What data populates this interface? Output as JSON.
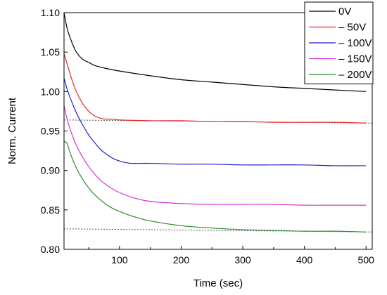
{
  "chart_data": {
    "type": "line",
    "title": "",
    "xlabel": "Time (sec)",
    "ylabel": "Norm. Current",
    "xlim": [
      10,
      510
    ],
    "ylim": [
      0.8,
      1.1
    ],
    "xticks": [
      100,
      200,
      300,
      400,
      500
    ],
    "yticks": [
      0.8,
      0.85,
      0.9,
      0.95,
      1.0,
      1.05,
      1.1
    ],
    "grid": false,
    "legend_position": "top-right",
    "series": [
      {
        "name": "0V",
        "color": "#000000",
        "x": [
          10,
          15,
          20,
          25,
          30,
          40,
          50,
          60,
          80,
          100,
          150,
          200,
          250,
          300,
          350,
          400,
          450,
          500
        ],
        "y": [
          1.1,
          1.08,
          1.068,
          1.058,
          1.05,
          1.041,
          1.037,
          1.033,
          1.029,
          1.026,
          1.02,
          1.015,
          1.012,
          1.009,
          1.006,
          1.004,
          1.002,
          1.0
        ]
      },
      {
        "name": "– 50V",
        "color": "#e8262b",
        "x": [
          10,
          15,
          20,
          25,
          30,
          40,
          50,
          60,
          70,
          80,
          90,
          100,
          150,
          200,
          250,
          300,
          350,
          400,
          450,
          500
        ],
        "y": [
          1.048,
          1.035,
          1.022,
          1.01,
          1.0,
          0.985,
          0.975,
          0.969,
          0.966,
          0.965,
          0.965,
          0.964,
          0.963,
          0.963,
          0.962,
          0.962,
          0.961,
          0.961,
          0.961,
          0.96
        ]
      },
      {
        "name": "– 100V",
        "color": "#1f1fcf",
        "x": [
          10,
          15,
          20,
          30,
          40,
          50,
          60,
          70,
          80,
          90,
          100,
          110,
          120,
          150,
          200,
          250,
          300,
          350,
          400,
          450,
          500
        ],
        "y": [
          1.017,
          1.003,
          0.992,
          0.973,
          0.958,
          0.945,
          0.935,
          0.926,
          0.92,
          0.915,
          0.912,
          0.91,
          0.909,
          0.909,
          0.908,
          0.908,
          0.907,
          0.907,
          0.907,
          0.906,
          0.906
        ]
      },
      {
        "name": "– 150V",
        "color": "#d633d6",
        "x": [
          10,
          15,
          20,
          30,
          40,
          50,
          60,
          70,
          80,
          90,
          100,
          120,
          140,
          160,
          180,
          200,
          250,
          300,
          350,
          400,
          450,
          500
        ],
        "y": [
          0.982,
          0.965,
          0.952,
          0.932,
          0.917,
          0.905,
          0.895,
          0.887,
          0.881,
          0.876,
          0.872,
          0.866,
          0.862,
          0.86,
          0.859,
          0.858,
          0.857,
          0.857,
          0.857,
          0.856,
          0.856,
          0.856
        ]
      },
      {
        "name": "– 200V",
        "color": "#2e8b2e",
        "x": [
          10,
          15,
          20,
          30,
          40,
          50,
          60,
          80,
          100,
          125,
          150,
          200,
          250,
          300,
          350,
          400,
          450,
          500
        ],
        "y": [
          0.937,
          0.934,
          0.922,
          0.903,
          0.889,
          0.878,
          0.869,
          0.856,
          0.848,
          0.841,
          0.836,
          0.83,
          0.827,
          0.825,
          0.824,
          0.823,
          0.823,
          0.822
        ]
      }
    ],
    "reference_lines": [
      {
        "style": "dotted",
        "color": "#555555",
        "x": [
          10,
          510
        ],
        "y": [
          0.964,
          0.96
        ]
      },
      {
        "style": "dotted",
        "color": "#555555",
        "x": [
          10,
          510
        ],
        "y": [
          0.826,
          0.822
        ]
      }
    ]
  }
}
